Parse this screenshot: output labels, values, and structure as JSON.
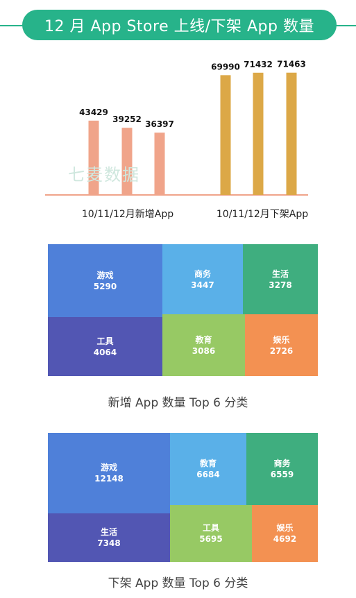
{
  "title": "12 月 App Store 上线/下架 App 数量",
  "watermark": "七麦数据",
  "colors": {
    "header": "#27b38a",
    "bar_new": "#f0a48a",
    "bar_removed": "#dca847",
    "baseline": "#f0a48a",
    "tiles": [
      "#4f80d9",
      "#5ab0e8",
      "#3fae7f",
      "#5256b3",
      "#97c964",
      "#f39152"
    ]
  },
  "chart_data": [
    {
      "type": "bar",
      "title": "",
      "groups": [
        {
          "label": "10/11/12月新增App",
          "values": [
            43429,
            39252,
            36397
          ]
        },
        {
          "label": "10/11/12月下架App",
          "values": [
            69990,
            71432,
            71463
          ]
        }
      ],
      "ylim": [
        0,
        75000
      ],
      "grid": false
    },
    {
      "type": "treemap",
      "title": "新增 App 数量 Top 6 分类",
      "items": [
        {
          "name": "游戏",
          "value": 5290
        },
        {
          "name": "商务",
          "value": 3447
        },
        {
          "name": "生活",
          "value": 3278
        },
        {
          "name": "工具",
          "value": 4064
        },
        {
          "name": "教育",
          "value": 3086
        },
        {
          "name": "娱乐",
          "value": 2726
        }
      ]
    },
    {
      "type": "treemap",
      "title": "下架 App 数量 Top 6 分类",
      "items": [
        {
          "name": "游戏",
          "value": 12148
        },
        {
          "name": "教育",
          "value": 6684
        },
        {
          "name": "商务",
          "value": 6559
        },
        {
          "name": "生活",
          "value": 7348
        },
        {
          "name": "工具",
          "value": 5695
        },
        {
          "name": "娱乐",
          "value": 4692
        }
      ]
    }
  ]
}
